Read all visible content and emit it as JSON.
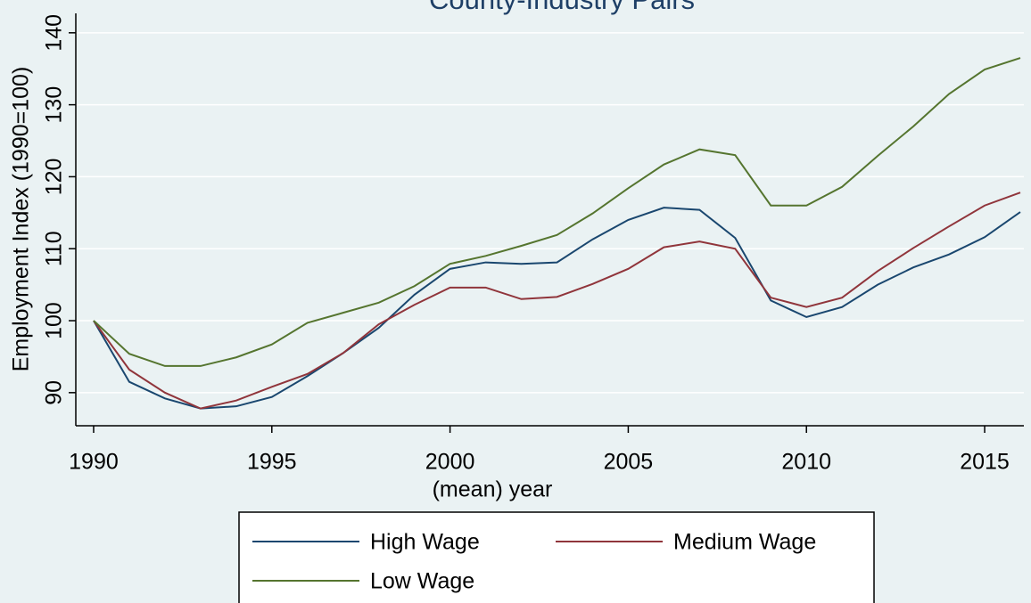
{
  "chart_data": {
    "type": "line",
    "title": "County-Industry Pairs",
    "x_label": "(mean) year",
    "y_label": "Employment Index (1990=100)",
    "x": [
      1990,
      1991,
      1992,
      1993,
      1994,
      1995,
      1996,
      1997,
      1998,
      1999,
      2000,
      2001,
      2002,
      2003,
      2004,
      2005,
      2006,
      2007,
      2008,
      2009,
      2010,
      2011,
      2012,
      2013,
      2014,
      2015,
      2016
    ],
    "series": [
      {
        "name": "High Wage",
        "color": "#1a476f",
        "values": [
          100,
          91.5,
          89.2,
          87.8,
          88.1,
          89.4,
          92.3,
          95.5,
          99,
          103.6,
          107.2,
          108.1,
          107.9,
          108.1,
          111.3,
          114,
          115.7,
          115.4,
          111.5,
          102.8,
          100.5,
          101.9,
          105,
          107.4,
          109.2,
          111.6,
          115.1
        ]
      },
      {
        "name": "Medium Wage",
        "color": "#90353b",
        "values": [
          100,
          93.2,
          90,
          87.8,
          88.9,
          90.8,
          92.6,
          95.5,
          99.5,
          102.2,
          104.6,
          104.6,
          103,
          103.3,
          105.1,
          107.2,
          110.2,
          111,
          110,
          103.2,
          101.9,
          103.2,
          106.9,
          110.1,
          113.1,
          116,
          117.8
        ]
      },
      {
        "name": "Low Wage",
        "color": "#55752f",
        "values": [
          100,
          95.4,
          93.7,
          93.7,
          94.9,
          96.7,
          99.7,
          101.1,
          102.5,
          104.8,
          107.9,
          109,
          110.4,
          111.9,
          114.9,
          118.4,
          121.7,
          123.8,
          123,
          116,
          116,
          118.6,
          122.9,
          127,
          131.5,
          134.9,
          136.5
        ]
      }
    ],
    "xlim": [
      1989.5,
      2016.1
    ],
    "ylim": [
      85.4,
      142.7
    ],
    "xticks": [
      1990,
      1995,
      2000,
      2005,
      2010,
      2015
    ],
    "yticks": [
      90,
      100,
      110,
      120,
      130,
      140
    ],
    "grid": true
  }
}
